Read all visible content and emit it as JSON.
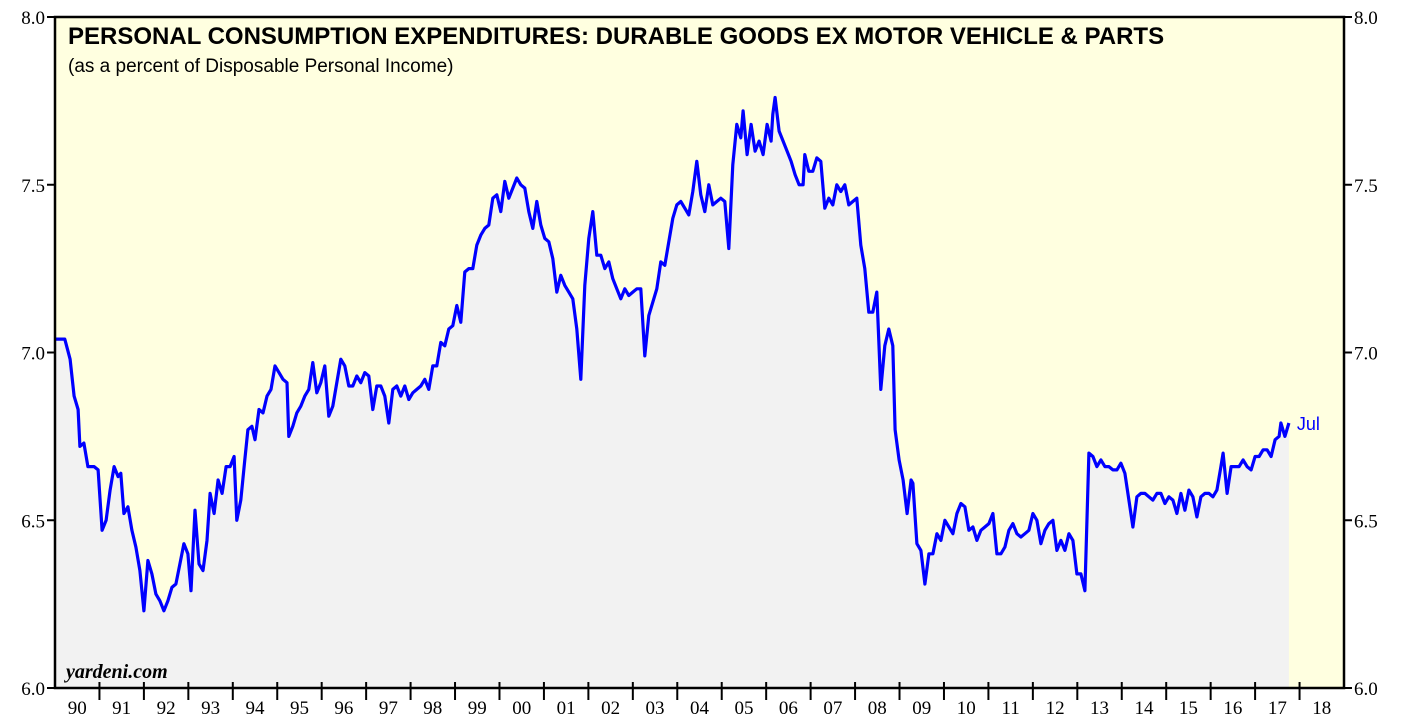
{
  "chart_data": {
    "type": "line",
    "title": "PERSONAL CONSUMPTION EXPENDITURES: DURABLE GOODS EX MOTOR VEHICLE & PARTS",
    "subtitle": "(as a percent of Disposable Personal Income)",
    "source": "yardeni.com",
    "annotation": "Jul",
    "xlim": [
      1990,
      2019
    ],
    "ylim": [
      6.0,
      8.0
    ],
    "yticks": [
      {
        "value": 6.0,
        "label": "6.0"
      },
      6.5,
      {
        "value": 7.0,
        "label": "7.0"
      },
      7.5,
      {
        "value": 8.0,
        "label": "8.0"
      }
    ],
    "xticks": [
      {
        "value": 1990,
        "label": "90"
      },
      {
        "value": 1991,
        "label": "91"
      },
      {
        "value": 1992,
        "label": "92"
      },
      {
        "value": 1993,
        "label": "93"
      },
      {
        "value": 1994,
        "label": "94"
      },
      {
        "value": 1995,
        "label": "95"
      },
      {
        "value": 1996,
        "label": "96"
      },
      {
        "value": 1997,
        "label": "97"
      },
      {
        "value": 1998,
        "label": "98"
      },
      {
        "value": 1999,
        "label": "99"
      },
      {
        "value": 2000,
        "label": "00"
      },
      {
        "value": 2001,
        "label": "01"
      },
      {
        "value": 2002,
        "label": "02"
      },
      {
        "value": 2003,
        "label": "03"
      },
      {
        "value": 2004,
        "label": "04"
      },
      {
        "value": 2005,
        "label": "05"
      },
      {
        "value": 2006,
        "label": "06"
      },
      {
        "value": 2007,
        "label": "07"
      },
      {
        "value": 2008,
        "label": "08"
      },
      {
        "value": 2009,
        "label": "09"
      },
      {
        "value": 2010,
        "label": "10"
      },
      {
        "value": 2011,
        "label": "11"
      },
      {
        "value": 2012,
        "label": "12"
      },
      {
        "value": 2013,
        "label": "13"
      },
      {
        "value": 2014,
        "label": "14"
      },
      {
        "value": 2015,
        "label": "15"
      },
      {
        "value": 2016,
        "label": "16"
      },
      {
        "value": 2017,
        "label": "17"
      },
      {
        "value": 2018,
        "label": "18"
      }
    ],
    "background_color": "#ffffe0",
    "area_color": "#f2f2f2",
    "x": [
      1990.0,
      1990.22,
      1990.34,
      1990.43,
      1990.52,
      1990.56,
      1990.65,
      1990.74,
      1990.88,
      1990.97,
      1991.06,
      1991.15,
      1991.24,
      1991.33,
      1991.42,
      1991.48,
      1991.55,
      1991.64,
      1991.73,
      1991.82,
      1991.91,
      1992.0,
      1992.09,
      1992.18,
      1992.27,
      1992.36,
      1992.45,
      1992.54,
      1992.63,
      1992.72,
      1992.81,
      1992.9,
      1992.99,
      1993.06,
      1993.15,
      1993.24,
      1993.33,
      1993.42,
      1993.49,
      1993.58,
      1993.67,
      1993.76,
      1993.85,
      1993.94,
      1994.03,
      1994.09,
      1994.18,
      1994.27,
      1994.34,
      1994.43,
      1994.5,
      1994.59,
      1994.68,
      1994.77,
      1994.86,
      1994.95,
      1995.04,
      1995.13,
      1995.22,
      1995.26,
      1995.35,
      1995.44,
      1995.53,
      1995.62,
      1995.71,
      1995.8,
      1995.89,
      1995.98,
      1996.07,
      1996.16,
      1996.25,
      1996.34,
      1996.43,
      1996.52,
      1996.61,
      1996.7,
      1996.79,
      1996.88,
      1996.97,
      1997.06,
      1997.15,
      1997.24,
      1997.33,
      1997.42,
      1997.51,
      1997.6,
      1997.69,
      1997.78,
      1997.87,
      1997.96,
      1998.05,
      1998.14,
      1998.23,
      1998.32,
      1998.41,
      1998.5,
      1998.59,
      1998.68,
      1998.77,
      1998.86,
      1998.95,
      1999.04,
      1999.13,
      1999.22,
      1999.31,
      1999.4,
      1999.49,
      1999.58,
      1999.67,
      1999.76,
      1999.85,
      1999.94,
      2000.03,
      2000.12,
      2000.21,
      2000.3,
      2000.39,
      2000.48,
      2000.57,
      2000.66,
      2000.75,
      2000.84,
      2000.93,
      2001.02,
      2001.11,
      2001.2,
      2001.29,
      2001.38,
      2001.47,
      2001.56,
      2001.65,
      2001.74,
      2001.83,
      2001.92,
      2002.01,
      2002.1,
      2002.19,
      2002.28,
      2002.37,
      2002.46,
      2002.55,
      2002.64,
      2002.73,
      2002.82,
      2002.91,
      2003.0,
      2003.09,
      2003.18,
      2003.27,
      2003.36,
      2003.45,
      2003.54,
      2003.63,
      2003.72,
      2003.81,
      2003.9,
      2003.99,
      2004.08,
      2004.17,
      2004.26,
      2004.35,
      2004.44,
      2004.53,
      2004.62,
      2004.71,
      2004.8,
      2004.89,
      2004.98,
      2005.07,
      2005.16,
      2005.25,
      2005.34,
      2005.43,
      2005.48,
      2005.57,
      2005.66,
      2005.75,
      2005.84,
      2005.93,
      2006.02,
      2006.11,
      2006.15,
      2006.2,
      2006.29,
      2006.38,
      2006.47,
      2006.56,
      2006.65,
      2006.74,
      2006.83,
      2006.87,
      2006.96,
      2007.05,
      2007.14,
      2007.23,
      2007.32,
      2007.41,
      2007.5,
      2007.59,
      2007.68,
      2007.77,
      2007.86,
      2007.95,
      2008.04,
      2008.13,
      2008.22,
      2008.31,
      2008.4,
      2008.49,
      2008.58,
      2008.67,
      2008.76,
      2008.85,
      2008.9,
      2008.99,
      2009.08,
      2009.17,
      2009.26,
      2009.3,
      2009.39,
      2009.48,
      2009.57,
      2009.66,
      2009.75,
      2009.84,
      2009.93,
      2010.02,
      2010.11,
      2010.2,
      2010.29,
      2010.38,
      2010.47,
      2010.56,
      2010.65,
      2010.74,
      2010.83,
      2010.92,
      2011.01,
      2011.1,
      2011.19,
      2011.28,
      2011.37,
      2011.46,
      2011.55,
      2011.64,
      2011.73,
      2011.82,
      2011.91,
      2012.0,
      2012.09,
      2012.18,
      2012.27,
      2012.36,
      2012.45,
      2012.54,
      2012.63,
      2012.72,
      2012.81,
      2012.9,
      2012.99,
      2013.08,
      2013.17,
      2013.26,
      2013.35,
      2013.44,
      2013.53,
      2013.62,
      2013.71,
      2013.8,
      2013.89,
      2013.98,
      2014.07,
      2014.16,
      2014.25,
      2014.34,
      2014.43,
      2014.52,
      2014.61,
      2014.7,
      2014.79,
      2014.88,
      2014.97,
      2015.06,
      2015.15,
      2015.24,
      2015.33,
      2015.42,
      2015.51,
      2015.6,
      2015.69,
      2015.78,
      2015.87,
      2015.96,
      2016.05,
      2016.14,
      2016.23,
      2016.28,
      2016.37,
      2016.46,
      2016.55,
      2016.64,
      2016.73,
      2016.82,
      2016.91,
      2017.0,
      2017.09,
      2017.18,
      2017.27,
      2017.36,
      2017.45,
      2017.54,
      2017.58,
      2017.67,
      2017.76
    ],
    "series": [
      {
        "name": "PCE durable goods ex motor vehicle & parts",
        "color": "#0000ff",
        "values": [
          7.04,
          7.04,
          6.98,
          6.87,
          6.83,
          6.72,
          6.73,
          6.66,
          6.66,
          6.65,
          6.47,
          6.5,
          6.59,
          6.66,
          6.63,
          6.64,
          6.52,
          6.54,
          6.47,
          6.42,
          6.35,
          6.23,
          6.38,
          6.34,
          6.28,
          6.26,
          6.23,
          6.26,
          6.3,
          6.31,
          6.37,
          6.43,
          6.4,
          6.29,
          6.53,
          6.37,
          6.35,
          6.44,
          6.58,
          6.52,
          6.62,
          6.58,
          6.66,
          6.66,
          6.69,
          6.5,
          6.56,
          6.68,
          6.77,
          6.78,
          6.74,
          6.83,
          6.82,
          6.87,
          6.89,
          6.96,
          6.94,
          6.92,
          6.91,
          6.75,
          6.78,
          6.82,
          6.84,
          6.87,
          6.89,
          6.97,
          6.88,
          6.91,
          6.96,
          6.81,
          6.84,
          6.91,
          6.98,
          6.96,
          6.9,
          6.9,
          6.93,
          6.91,
          6.94,
          6.93,
          6.83,
          6.9,
          6.9,
          6.87,
          6.79,
          6.89,
          6.9,
          6.87,
          6.9,
          6.86,
          6.88,
          6.89,
          6.9,
          6.92,
          6.89,
          6.96,
          6.96,
          7.03,
          7.02,
          7.07,
          7.08,
          7.14,
          7.09,
          7.24,
          7.25,
          7.25,
          7.32,
          7.35,
          7.37,
          7.38,
          7.46,
          7.47,
          7.42,
          7.51,
          7.46,
          7.49,
          7.52,
          7.5,
          7.49,
          7.42,
          7.37,
          7.45,
          7.38,
          7.34,
          7.33,
          7.28,
          7.18,
          7.23,
          7.2,
          7.18,
          7.16,
          7.07,
          6.92,
          7.2,
          7.34,
          7.42,
          7.29,
          7.29,
          7.25,
          7.27,
          7.22,
          7.19,
          7.16,
          7.19,
          7.17,
          7.18,
          7.19,
          7.19,
          6.99,
          7.11,
          7.15,
          7.19,
          7.27,
          7.26,
          7.33,
          7.4,
          7.44,
          7.45,
          7.43,
          7.41,
          7.48,
          7.57,
          7.47,
          7.42,
          7.5,
          7.44,
          7.45,
          7.46,
          7.45,
          7.31,
          7.56,
          7.68,
          7.64,
          7.72,
          7.59,
          7.68,
          7.6,
          7.63,
          7.59,
          7.68,
          7.63,
          7.71,
          7.76,
          7.66,
          7.63,
          7.6,
          7.57,
          7.53,
          7.5,
          7.5,
          7.59,
          7.54,
          7.54,
          7.58,
          7.57,
          7.43,
          7.46,
          7.44,
          7.5,
          7.48,
          7.5,
          7.44,
          7.45,
          7.46,
          7.32,
          7.25,
          7.12,
          7.12,
          7.18,
          6.89,
          7.02,
          7.07,
          7.02,
          6.77,
          6.68,
          6.62,
          6.52,
          6.62,
          6.61,
          6.43,
          6.41,
          6.31,
          6.4,
          6.4,
          6.46,
          6.44,
          6.5,
          6.48,
          6.46,
          6.52,
          6.55,
          6.54,
          6.47,
          6.48,
          6.44,
          6.47,
          6.48,
          6.49,
          6.52,
          6.4,
          6.4,
          6.42,
          6.47,
          6.49,
          6.46,
          6.45,
          6.46,
          6.47,
          6.52,
          6.5,
          6.43,
          6.47,
          6.49,
          6.5,
          6.41,
          6.44,
          6.41,
          6.46,
          6.44,
          6.34,
          6.34,
          6.29,
          6.7,
          6.69,
          6.66,
          6.68,
          6.66,
          6.66,
          6.65,
          6.65,
          6.67,
          6.64,
          6.56,
          6.48,
          6.57,
          6.58,
          6.58,
          6.57,
          6.56,
          6.58,
          6.58,
          6.55,
          6.57,
          6.56,
          6.52,
          6.58,
          6.53,
          6.59,
          6.57,
          6.51,
          6.57,
          6.58,
          6.58,
          6.57,
          6.59,
          6.66,
          6.7,
          6.58,
          6.66,
          6.66,
          6.66,
          6.68,
          6.66,
          6.65,
          6.69,
          6.69,
          6.71,
          6.71,
          6.69,
          6.74,
          6.75,
          6.79,
          6.75,
          6.79
        ]
      }
    ]
  }
}
